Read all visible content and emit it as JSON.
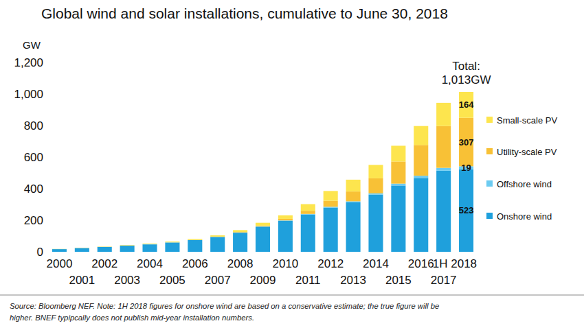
{
  "chart_data": {
    "type": "bar",
    "stacked": true,
    "title": "Global wind and solar installations, cumulative to June 30, 2018",
    "y_label": "GW",
    "categories": [
      "2000",
      "2001",
      "2002",
      "2003",
      "2004",
      "2005",
      "2006",
      "2007",
      "2008",
      "2009",
      "2010",
      "2011",
      "2012",
      "2013",
      "2014",
      "2015",
      "2016",
      "2017",
      "1H 2018"
    ],
    "series": [
      {
        "name": "Onshore wind",
        "color": "#1fa0dc",
        "values": [
          17,
          24,
          31,
          39,
          47,
          59,
          74,
          94,
          121,
          159,
          196,
          236,
          280,
          313,
          362,
          420,
          468,
          514,
          523
        ],
        "value_labels": [
          null,
          null,
          null,
          null,
          null,
          null,
          null,
          null,
          null,
          null,
          null,
          null,
          null,
          null,
          null,
          null,
          null,
          null,
          "523"
        ]
      },
      {
        "name": "Offshore wind",
        "color": "#6ccbf1",
        "values": [
          0,
          0,
          0,
          0.5,
          0.6,
          0.7,
          0.9,
          1.1,
          1.5,
          2,
          3,
          4,
          5.4,
          7,
          8.7,
          12,
          14,
          18,
          19
        ],
        "value_labels": [
          null,
          null,
          null,
          null,
          null,
          null,
          null,
          null,
          null,
          null,
          null,
          null,
          null,
          null,
          null,
          null,
          null,
          null,
          "19"
        ]
      },
      {
        "name": "Utility-scale PV",
        "color": "#f8c136",
        "values": [
          0,
          0,
          0,
          0,
          0,
          0,
          0.5,
          1,
          3,
          5,
          10,
          20,
          38,
          62,
          95,
          140,
          195,
          265,
          307
        ],
        "value_labels": [
          null,
          null,
          null,
          null,
          null,
          null,
          null,
          null,
          null,
          null,
          null,
          null,
          null,
          null,
          null,
          null,
          null,
          null,
          "307"
        ]
      },
      {
        "name": "Small-scale PV",
        "color": "#fde54e",
        "values": [
          1,
          1.5,
          2,
          3,
          4,
          5,
          6,
          8,
          12,
          18,
          22,
          42,
          62,
          75,
          85,
          100,
          120,
          147,
          164
        ],
        "value_labels": [
          null,
          null,
          null,
          null,
          null,
          null,
          null,
          null,
          null,
          null,
          null,
          null,
          null,
          null,
          null,
          null,
          null,
          null,
          "164"
        ]
      }
    ],
    "ylim": [
      0,
      1200
    ],
    "yticks": [
      0,
      200,
      400,
      600,
      800,
      {
        "value": 1000,
        "label": "1,000"
      },
      {
        "value": 1200,
        "label": "1,200"
      }
    ],
    "grid": false,
    "data_labels": true,
    "legend": "right",
    "annotations": [
      "Total:",
      "1,013GW"
    ],
    "source": [
      "Source: Bloomberg NEF. Note: 1H 2018 figures for onshore wind are based on a conservative estimate; the true figure will be",
      "higher. BNEF typipcally does not publish mid-year installation numbers."
    ]
  }
}
